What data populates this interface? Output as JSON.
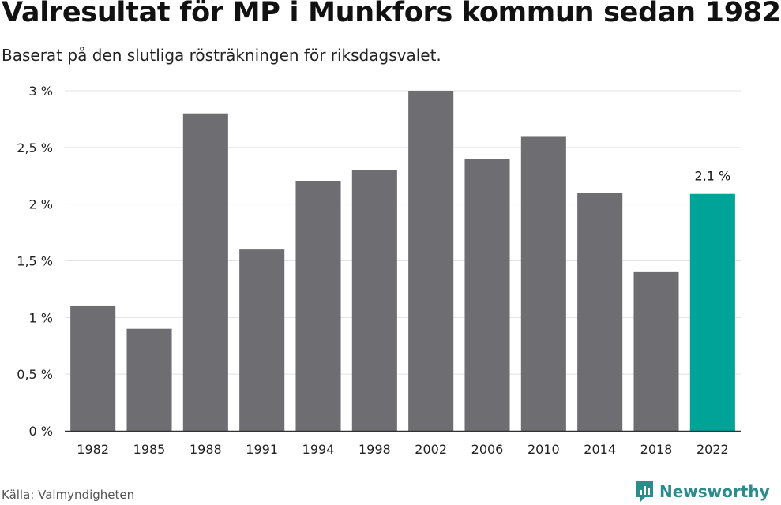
{
  "header": {
    "title": "Valresultat för MP i Munkfors kommun sedan 1982",
    "subtitle": "Baserat på den slutliga rösträkningen för riksdagsvalet."
  },
  "footer": {
    "source": "Källa: Valmyndigheten",
    "brand": "Newsworthy"
  },
  "colors": {
    "bar": "#6e6d72",
    "highlight": "#00a398",
    "grid": "#e2e2e2",
    "axis": "#333333"
  },
  "chart_data": {
    "type": "bar",
    "title": "Valresultat för MP i Munkfors kommun sedan 1982",
    "xlabel": "",
    "ylabel": "",
    "categories": [
      "1982",
      "1985",
      "1988",
      "1991",
      "1994",
      "1998",
      "2002",
      "2006",
      "2010",
      "2014",
      "2018",
      "2022"
    ],
    "values": [
      1.1,
      0.9,
      2.8,
      1.6,
      2.2,
      2.3,
      3.0,
      2.4,
      2.6,
      2.1,
      1.4,
      2.09
    ],
    "ylim": [
      0,
      3
    ],
    "yticks": [
      0,
      0.5,
      1,
      1.5,
      2,
      2.5,
      3
    ],
    "ytick_labels": [
      "0 %",
      "0,5 %",
      "1 %",
      "1,5 %",
      "2 %",
      "2,5 %",
      "3 %"
    ],
    "highlight_index": 11,
    "annotations": [
      {
        "category": "2022",
        "text": "2,1 %"
      }
    ],
    "grid": true
  }
}
